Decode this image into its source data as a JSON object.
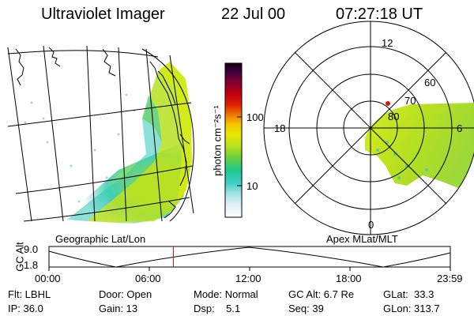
{
  "header": {
    "title": "Ultraviolet Imager",
    "date": "22 Jul 00",
    "time": "07:27:18 UT"
  },
  "geo_panel": {
    "label": "Geographic Lat/Lon"
  },
  "polar_panel": {
    "label": "Apex MLat/MLT",
    "mlt_labels": [
      "12",
      "18",
      "6",
      "0"
    ],
    "lat_labels": [
      "60",
      "70",
      "80"
    ]
  },
  "colorbar": {
    "unit_label": "photon cm⁻²s⁻¹",
    "ticks": [
      "100",
      "10"
    ],
    "colors": [
      "#ffffff",
      "#e0f0f4",
      "#a8e4e4",
      "#40d0c8",
      "#20c890",
      "#60d040",
      "#b8e020",
      "#e8e800",
      "#f8c800",
      "#f08000",
      "#e02000",
      "#c00010",
      "#800030",
      "#400040",
      "#100010"
    ]
  },
  "timeline": {
    "axis_label": "GC Alt",
    "y_ticks": [
      "9.0",
      "1.8"
    ],
    "x_ticks": [
      "00:00",
      "06:00",
      "12:00",
      "18:00",
      "23:59"
    ],
    "current_time_fraction": 0.31,
    "marker_color": "#ff0000"
  },
  "info": {
    "flt": "Flt: LBHL",
    "ip": "IP: 36.0",
    "door": "Door: Open",
    "gain": "Gain: 13",
    "mode": "Mode: Normal",
    "dsp": "Dsp:    5.1",
    "gcalt": "GC Alt: 6.7 Re",
    "seq": "Seq: 39",
    "glat": "GLat:  33.3",
    "glon": "GLon: 313.7"
  }
}
